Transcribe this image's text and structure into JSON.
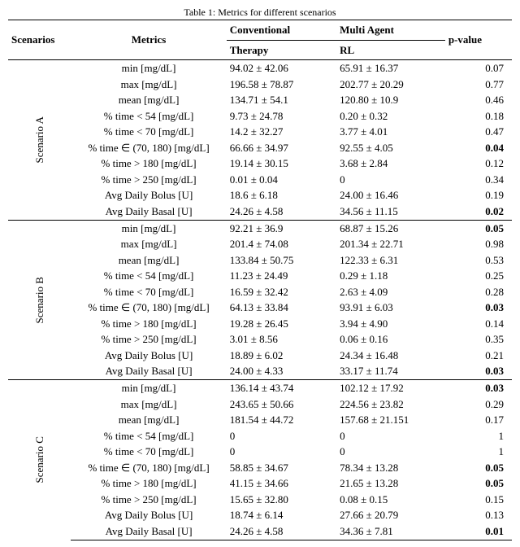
{
  "caption": "Table 1: Metrics for different scenarios",
  "headers": {
    "scenarios": "Scenarios",
    "metrics": "Metrics",
    "conv1": "Conventional",
    "conv2": "Therapy",
    "marl1": "Multi Agent",
    "marl2": "RL",
    "pval": "p-value"
  },
  "scenarios": [
    {
      "label": "Scenario A",
      "rows": [
        {
          "metric": "min [mg/dL]",
          "conv": "94.02 ± 42.06",
          "marl": "65.91 ± 16.37",
          "p": "0.07",
          "b": false
        },
        {
          "metric": "max [mg/dL]",
          "conv": "196.58 ± 78.87",
          "marl": "202.77 ± 20.29",
          "p": "0.77",
          "b": false
        },
        {
          "metric": "mean [mg/dL]",
          "conv": "134.71 ± 54.1",
          "marl": "120.80 ± 10.9",
          "p": "0.46",
          "b": false
        },
        {
          "metric": "% time < 54 [mg/dL]",
          "conv": "9.73 ± 24.78",
          "marl": "0.20 ± 0.32",
          "p": "0.18",
          "b": false
        },
        {
          "metric": "% time < 70 [mg/dL]",
          "conv": "14.2 ± 32.27",
          "marl": "3.77 ± 4.01",
          "p": "0.47",
          "b": false
        },
        {
          "metric": "% time ∈ (70, 180) [mg/dL]",
          "conv": "66.66 ± 34.97",
          "marl": "92.55 ± 4.05",
          "p": "0.04",
          "b": true
        },
        {
          "metric": "% time > 180 [mg/dL]",
          "conv": "19.14 ± 30.15",
          "marl": "3.68 ± 2.84",
          "p": "0.12",
          "b": false
        },
        {
          "metric": "% time > 250 [mg/dL]",
          "conv": "0.01 ± 0.04",
          "marl": "0",
          "p": "0.34",
          "b": false
        },
        {
          "metric": "Avg Daily Bolus [U]",
          "conv": "18.6 ± 6.18",
          "marl": "24.00 ± 16.46",
          "p": "0.19",
          "b": false
        },
        {
          "metric": "Avg Daily Basal [U]",
          "conv": "24.26 ± 4.58",
          "marl": "34.56 ± 11.15",
          "p": "0.02",
          "b": true
        }
      ]
    },
    {
      "label": "Scenario B",
      "rows": [
        {
          "metric": "min [mg/dL]",
          "conv": "92.21 ± 36.9",
          "marl": "68.87 ± 15.26",
          "p": "0.05",
          "b": true
        },
        {
          "metric": "max [mg/dL]",
          "conv": "201.4 ± 74.08",
          "marl": "201.34 ± 22.71",
          "p": "0.98",
          "b": false
        },
        {
          "metric": "mean [mg/dL]",
          "conv": "133.84 ± 50.75",
          "marl": "122.33 ± 6.31",
          "p": "0.53",
          "b": false
        },
        {
          "metric": "% time < 54 [mg/dL]",
          "conv": "11.23 ± 24.49",
          "marl": "0.29 ± 1.18",
          "p": "0.25",
          "b": false
        },
        {
          "metric": "% time < 70 [mg/dL]",
          "conv": "16.59 ± 32.42",
          "marl": "2.63 ± 4.09",
          "p": "0.28",
          "b": false
        },
        {
          "metric": "% time ∈ (70, 180) [mg/dL]",
          "conv": "64.13 ± 33.84",
          "marl": "93.91 ± 6.03",
          "p": "0.03",
          "b": true
        },
        {
          "metric": "% time > 180 [mg/dL]",
          "conv": "19.28 ± 26.45",
          "marl": "3.94 ± 4.90",
          "p": "0.14",
          "b": false
        },
        {
          "metric": "% time > 250 [mg/dL]",
          "conv": "3.01 ± 8.56",
          "marl": "0.06 ± 0.16",
          "p": "0.35",
          "b": false
        },
        {
          "metric": "Avg Daily Bolus [U]",
          "conv": "18.89 ± 6.02",
          "marl": "24.34 ± 16.48",
          "p": "0.21",
          "b": false
        },
        {
          "metric": "Avg Daily Basal [U]",
          "conv": "24.00 ± 4.33",
          "marl": "33.17 ± 11.74",
          "p": "0.03",
          "b": true
        }
      ]
    },
    {
      "label": "Scenario C",
      "rows": [
        {
          "metric": "min [mg/dL]",
          "conv": "136.14 ± 43.74",
          "marl": "102.12 ± 17.92",
          "p": "0.03",
          "b": true
        },
        {
          "metric": "max [mg/dL]",
          "conv": "243.65 ± 50.66",
          "marl": "224.56 ± 23.82",
          "p": "0.29",
          "b": false
        },
        {
          "metric": "mean [mg/dL]",
          "conv": "181.54 ± 44.72",
          "marl": "157.68 ± 21.151",
          "p": "0.17",
          "b": false
        },
        {
          "metric": "% time < 54 [mg/dL]",
          "conv": "0",
          "marl": "0",
          "p": "1",
          "b": false
        },
        {
          "metric": "% time < 70 [mg/dL]",
          "conv": "0",
          "marl": "0",
          "p": "1",
          "b": false
        },
        {
          "metric": "% time ∈ (70, 180) [mg/dL]",
          "conv": "58.85 ± 34.67",
          "marl": "78.34 ± 13.28",
          "p": "0.05",
          "b": true
        },
        {
          "metric": "% time > 180 [mg/dL]",
          "conv": "41.15 ± 34.66",
          "marl": "21.65 ± 13.28",
          "p": "0.05",
          "b": true
        },
        {
          "metric": "% time > 250 [mg/dL]",
          "conv": "15.65 ± 32.80",
          "marl": "0.08 ± 0.15",
          "p": "0.15",
          "b": false
        },
        {
          "metric": "Avg Daily Bolus [U]",
          "conv": "18.74 ± 6.14",
          "marl": "27.66 ± 20.79",
          "p": "0.13",
          "b": false
        },
        {
          "metric": "Avg Daily Basal [U]",
          "conv": "24.26 ± 4.58",
          "marl": "34.36 ± 7.81",
          "p": "0.01",
          "b": true
        }
      ]
    }
  ]
}
